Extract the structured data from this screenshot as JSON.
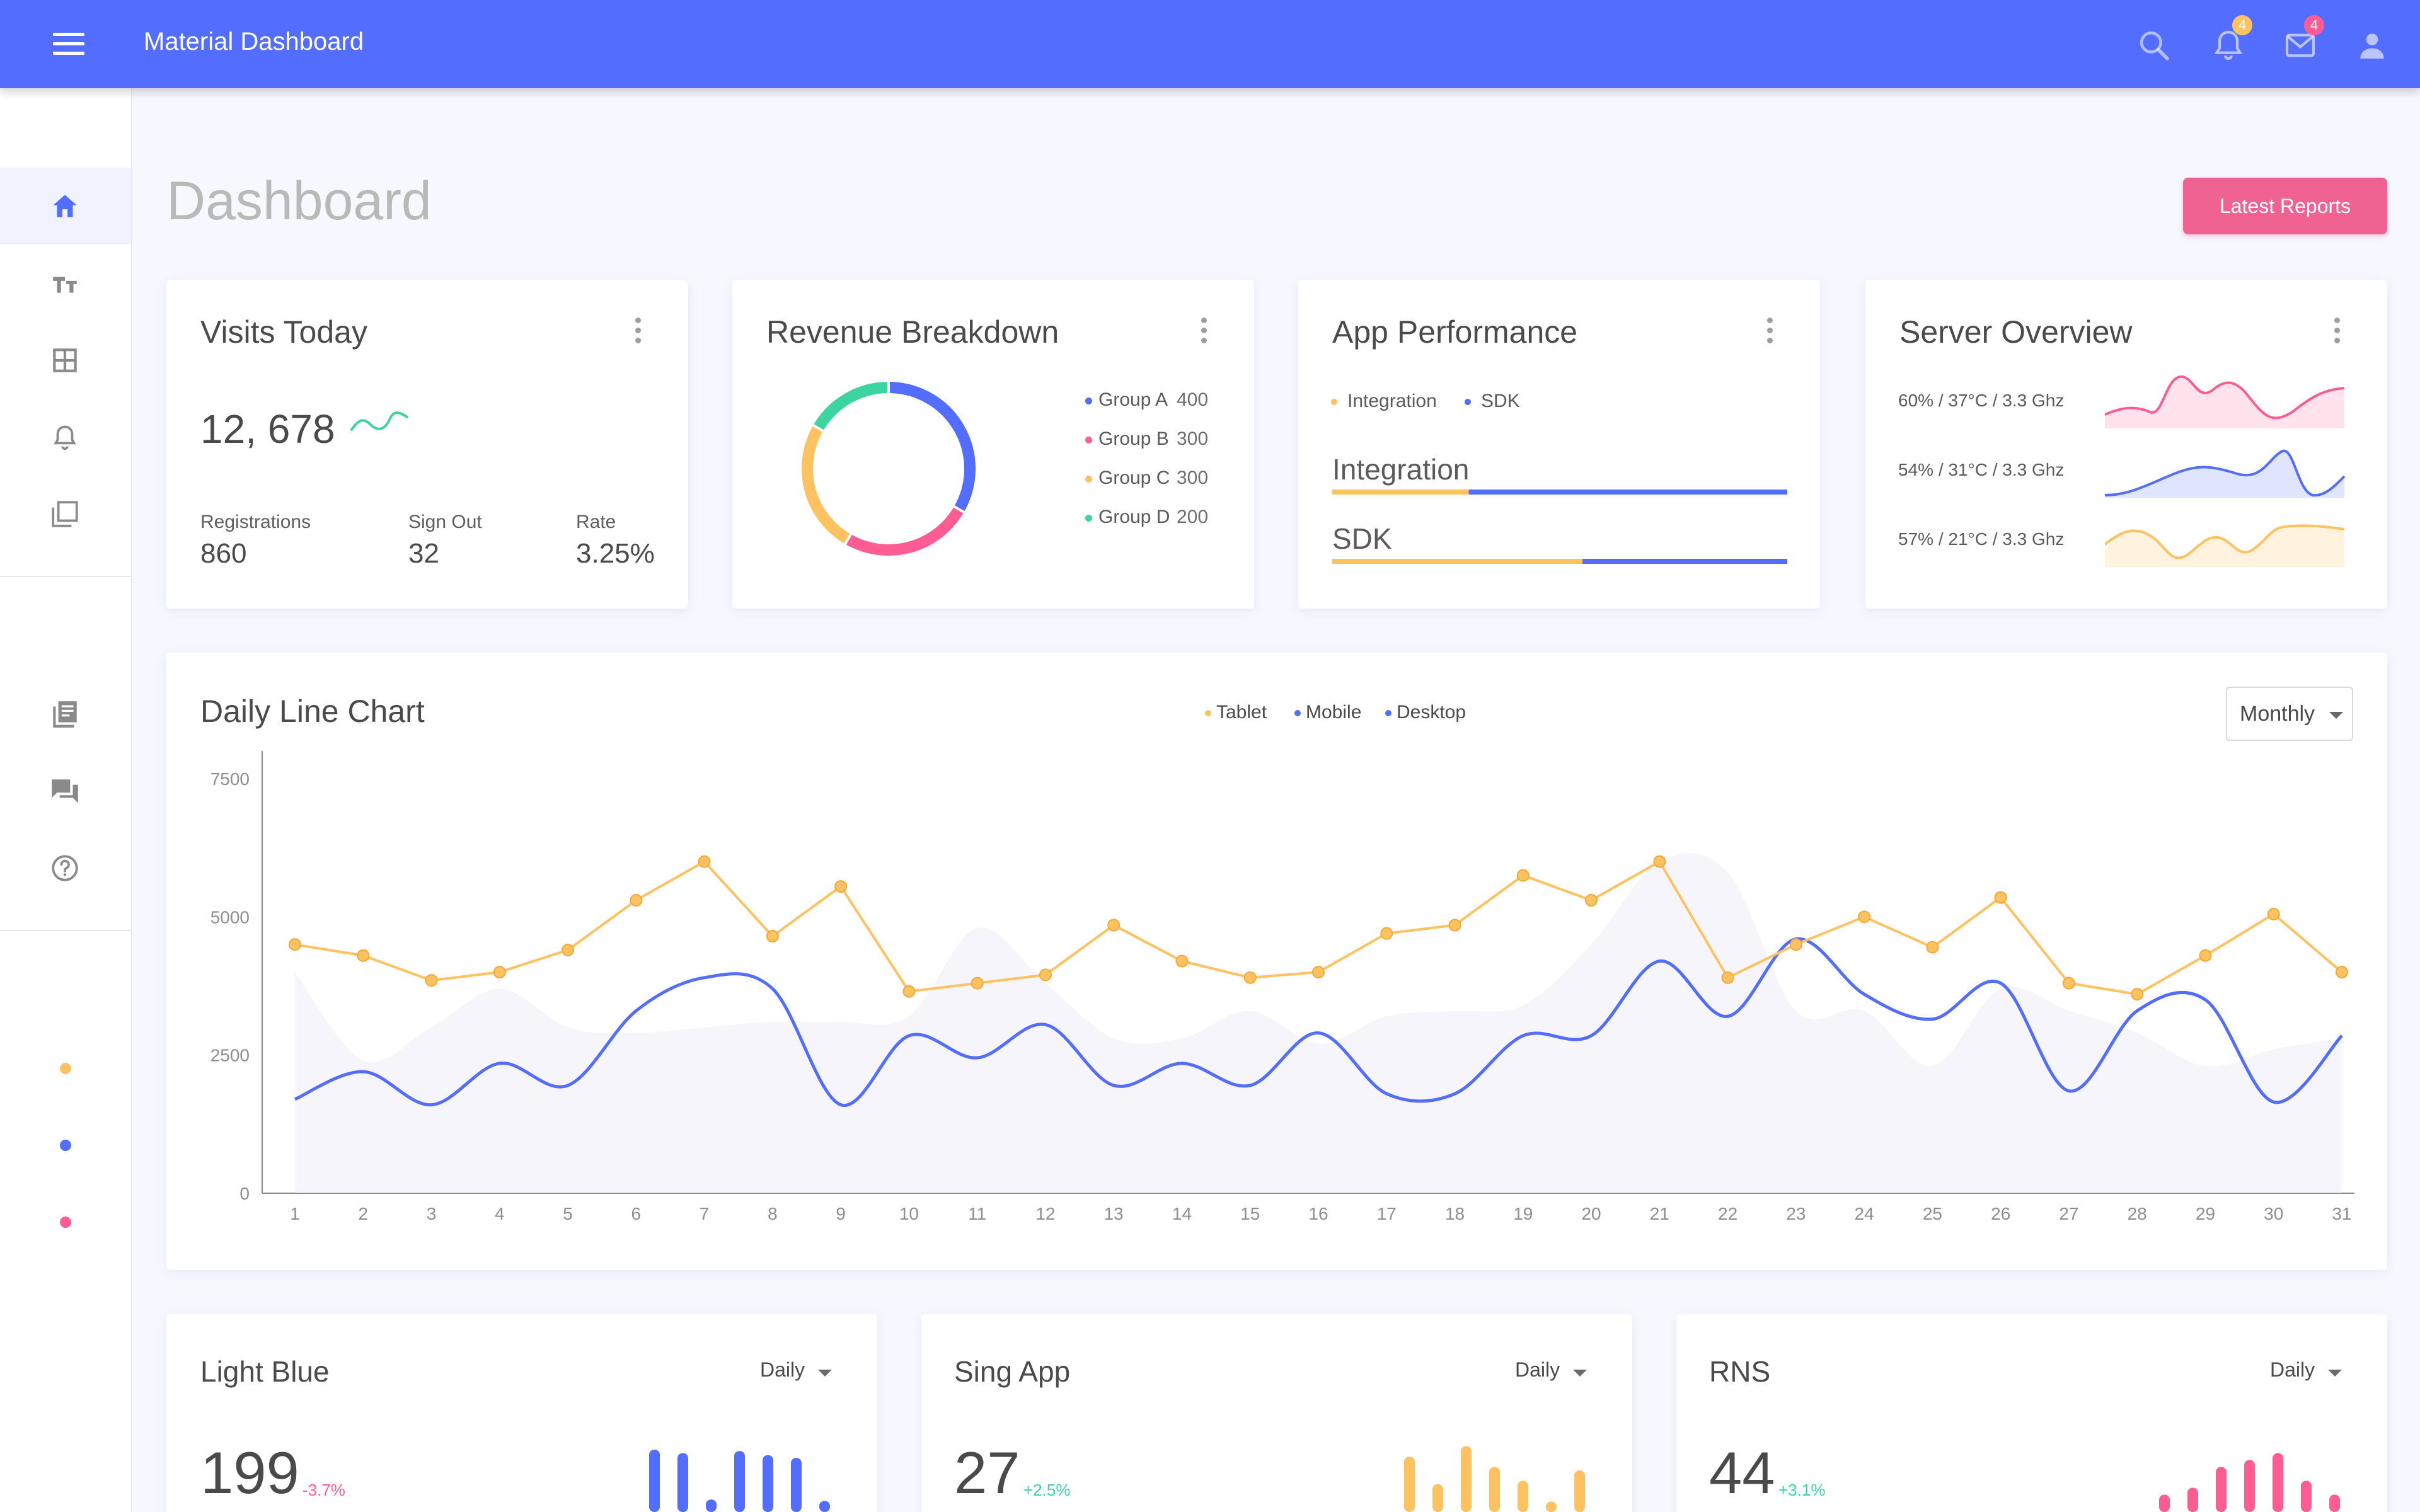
{
  "app": {
    "title": "Material Dashboard",
    "notifications_count": "4",
    "messages_count": "4"
  },
  "page": {
    "title": "Dashboard",
    "latest_reports_label": "Latest Reports"
  },
  "visits": {
    "title": "Visits Today",
    "value": "12, 678",
    "stats": [
      {
        "label": "Registrations",
        "value": "860"
      },
      {
        "label": "Sign Out",
        "value": "32"
      },
      {
        "label": "Rate",
        "value": "3.25%"
      }
    ]
  },
  "revenue": {
    "title": "Revenue Breakdown",
    "groups": [
      {
        "name": "Group A",
        "value": 400,
        "color": "#536dfe"
      },
      {
        "name": "Group B",
        "value": 300,
        "color": "#ff5c93"
      },
      {
        "name": "Group C",
        "value": 300,
        "color": "#ffc260"
      },
      {
        "name": "Group D",
        "value": 200,
        "color": "#3cd4a0"
      }
    ]
  },
  "performance": {
    "title": "App Performance",
    "legend": [
      "Integration",
      "SDK"
    ],
    "bars": [
      {
        "label": "Integration",
        "fraction": 0.3
      },
      {
        "label": "SDK",
        "fraction": 0.55
      }
    ]
  },
  "server": {
    "title": "Server Overview",
    "rows": [
      {
        "label": "60% / 37°C / 3.3 Ghz",
        "color": "#ff5c93"
      },
      {
        "label": "54% / 31°C / 3.3 Ghz",
        "color": "#536dfe"
      },
      {
        "label": "57% / 21°C / 3.3 Ghz",
        "color": "#ffc260"
      }
    ]
  },
  "daily": {
    "title": "Daily Line Chart",
    "legend": [
      "Tablet",
      "Mobile",
      "Desktop"
    ],
    "period": "Monthly"
  },
  "chart_data": {
    "type": "line",
    "x": [
      1,
      2,
      3,
      4,
      5,
      6,
      7,
      8,
      9,
      10,
      11,
      12,
      13,
      14,
      15,
      16,
      17,
      18,
      19,
      20,
      21,
      22,
      23,
      24,
      25,
      26,
      27,
      28,
      29,
      30,
      31
    ],
    "ylim": [
      0,
      7500
    ],
    "yticks": [
      0,
      2500,
      5000,
      7500
    ],
    "series": [
      {
        "name": "Tablet",
        "color": "#ffc260",
        "style": "line-markers",
        "values": [
          4500,
          4300,
          3850,
          4000,
          4400,
          5300,
          6000,
          4650,
          5550,
          3650,
          3800,
          3950,
          4850,
          4200,
          3900,
          4000,
          4700,
          4850,
          5750,
          5300,
          6000,
          3900,
          4500,
          5000,
          4450,
          5350,
          3800,
          3600,
          4300,
          5050,
          4000
        ]
      },
      {
        "name": "Mobile",
        "color": "#536dfe",
        "style": "smooth-line",
        "values": [
          1700,
          2200,
          1600,
          2350,
          1950,
          3300,
          3900,
          3700,
          1600,
          2850,
          2450,
          3050,
          1950,
          2350,
          1950,
          2900,
          1800,
          1800,
          2850,
          2850,
          4200,
          3200,
          4600,
          3600,
          3150,
          3800,
          1850,
          3300,
          3500,
          1650,
          2850
        ]
      },
      {
        "name": "Desktop",
        "color": "#ecedf7",
        "style": "area",
        "values": [
          4000,
          2400,
          3000,
          3700,
          3000,
          2900,
          3000,
          3100,
          3100,
          3200,
          4800,
          3800,
          2800,
          2800,
          3300,
          2700,
          3200,
          3300,
          3400,
          4500,
          6000,
          5800,
          3300,
          3300,
          2300,
          3700,
          3300,
          2900,
          2300,
          2600,
          2800
        ]
      }
    ]
  },
  "bottom_cards": [
    {
      "title": "Light Blue",
      "period": "Daily",
      "value": "199",
      "delta": "-3.7%",
      "color": "#536dfe",
      "deltaColor": "#ff5c93",
      "bars": [
        0.9,
        0.85,
        0.18,
        0.88,
        0.82,
        0.78,
        0.16
      ]
    },
    {
      "title": "Sing App",
      "period": "Daily",
      "value": "27",
      "delta": "+2.5%",
      "color": "#ffc260",
      "deltaColor": "#3cd4a0",
      "bars": [
        0.8,
        0.4,
        0.95,
        0.65,
        0.45,
        0.15,
        0.6
      ]
    },
    {
      "title": "RNS",
      "period": "Daily",
      "value": "44",
      "delta": "+3.1%",
      "color": "#ff5c93",
      "deltaColor": "#3cd4a0",
      "bars": [
        0.25,
        0.35,
        0.65,
        0.75,
        0.85,
        0.45,
        0.25
      ]
    }
  ]
}
